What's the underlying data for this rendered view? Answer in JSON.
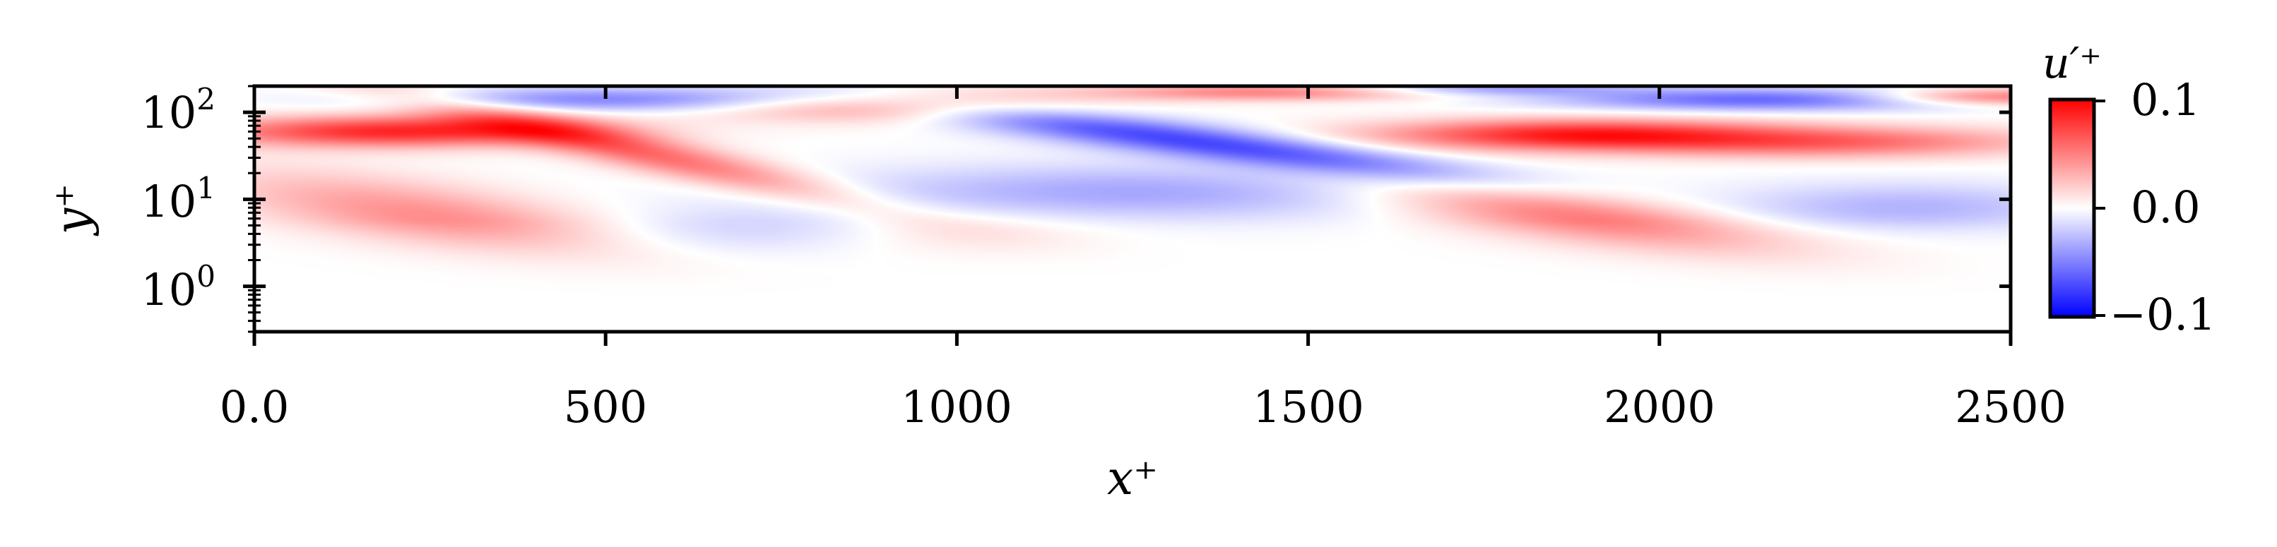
{
  "chart_data": {
    "type": "heatmap",
    "title": "",
    "xlabel": "x⁺",
    "ylabel": "y⁺",
    "colorbar_label": "u′⁺",
    "xlim": [
      0,
      2500
    ],
    "ylim": [
      0.3,
      200
    ],
    "y_scale": "log",
    "x_ticks": [
      0,
      500,
      1000,
      1500,
      2000,
      2500
    ],
    "x_tick_labels": [
      "0.0",
      "500",
      "1000",
      "1500",
      "2000",
      "2500"
    ],
    "y_ticks": [
      1,
      10,
      100
    ],
    "y_tick_base": "10",
    "y_tick_exponents": [
      "0",
      "1",
      "2"
    ],
    "colorbar": {
      "cmap": "bwr",
      "vmin": -0.1,
      "vmax": 0.1,
      "ticks": [
        0.1,
        0.0,
        -0.1
      ],
      "tick_labels": [
        "0.1",
        "0.0",
        "−0.1"
      ]
    },
    "grid": false,
    "structures": [
      {
        "x_center": 200,
        "y_center": 60,
        "x_half_width": 270,
        "log_y_half_width": 0.18,
        "tilt": 0.0,
        "amplitude": 0.085
      },
      {
        "x_center": 520,
        "y_center": 40,
        "x_half_width": 330,
        "log_y_half_width": 0.22,
        "tilt": -0.0018,
        "amplitude": 0.06
      },
      {
        "x_center": 260,
        "y_center": 6,
        "x_half_width": 300,
        "log_y_half_width": 0.38,
        "tilt": -0.0012,
        "amplitude": 0.045
      },
      {
        "x_center": 520,
        "y_center": 140,
        "x_half_width": 320,
        "log_y_half_width": 0.14,
        "tilt": 0.0,
        "amplitude": -0.05
      },
      {
        "x_center": 900,
        "y_center": 120,
        "x_half_width": 250,
        "log_y_half_width": 0.18,
        "tilt": 0.0,
        "amplitude": 0.05
      },
      {
        "x_center": 1350,
        "y_center": 45,
        "x_half_width": 420,
        "log_y_half_width": 0.2,
        "tilt": -0.001,
        "amplitude": -0.075
      },
      {
        "x_center": 1250,
        "y_center": 12,
        "x_half_width": 420,
        "log_y_half_width": 0.32,
        "tilt": 0.0,
        "amplitude": -0.035
      },
      {
        "x_center": 700,
        "y_center": 4,
        "x_half_width": 230,
        "log_y_half_width": 0.3,
        "tilt": 0.0,
        "amplitude": -0.02
      },
      {
        "x_center": 1000,
        "y_center": 4,
        "x_half_width": 200,
        "log_y_half_width": 0.28,
        "tilt": 0.0,
        "amplitude": 0.015
      },
      {
        "x_center": 1450,
        "y_center": 170,
        "x_half_width": 260,
        "log_y_half_width": 0.1,
        "tilt": 0.0,
        "amplitude": 0.05
      },
      {
        "x_center": 1880,
        "y_center": 55,
        "x_half_width": 280,
        "log_y_half_width": 0.18,
        "tilt": 0.0,
        "amplitude": 0.085
      },
      {
        "x_center": 1900,
        "y_center": 6,
        "x_half_width": 320,
        "log_y_half_width": 0.34,
        "tilt": -0.0012,
        "amplitude": 0.055
      },
      {
        "x_center": 2250,
        "y_center": 45,
        "x_half_width": 300,
        "log_y_half_width": 0.18,
        "tilt": 0.0,
        "amplitude": 0.055
      },
      {
        "x_center": 2150,
        "y_center": 140,
        "x_half_width": 300,
        "log_y_half_width": 0.13,
        "tilt": 0.0,
        "amplitude": -0.06
      },
      {
        "x_center": 2350,
        "y_center": 8,
        "x_half_width": 260,
        "log_y_half_width": 0.28,
        "tilt": 0.0,
        "amplitude": -0.03
      },
      {
        "x_center": 1750,
        "y_center": 185,
        "x_half_width": 200,
        "log_y_half_width": 0.08,
        "tilt": 0.0,
        "amplitude": -0.04
      },
      {
        "x_center": 2480,
        "y_center": 150,
        "x_half_width": 180,
        "log_y_half_width": 0.1,
        "tilt": 0.0,
        "amplitude": 0.06
      }
    ]
  }
}
